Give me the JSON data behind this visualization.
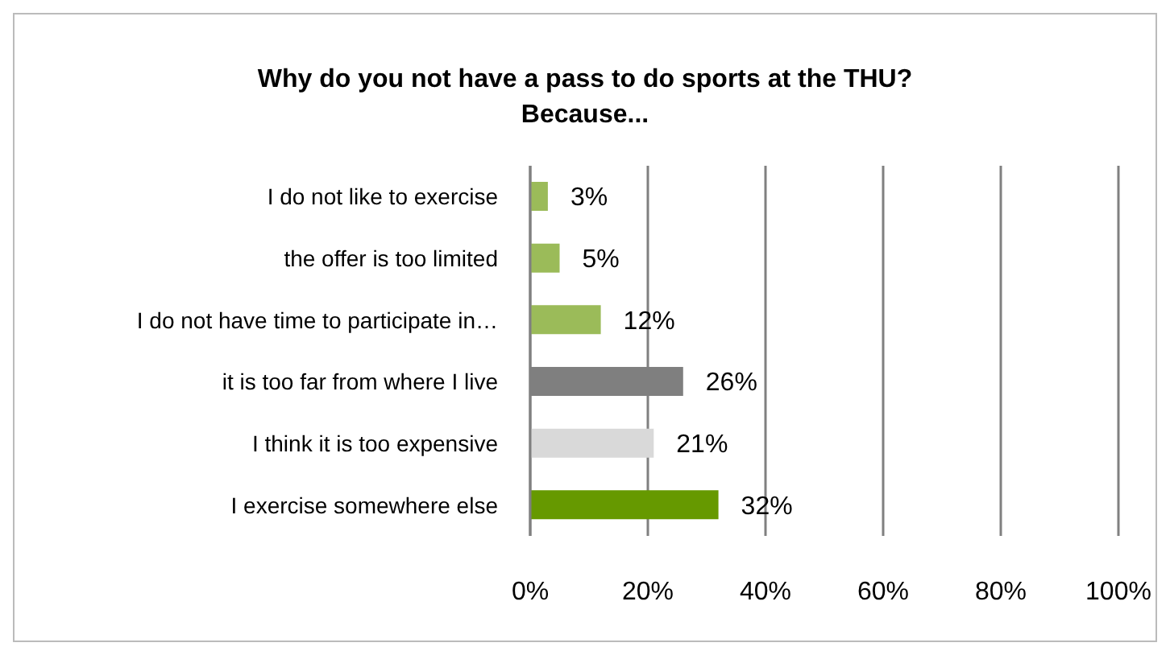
{
  "chart_data": {
    "type": "bar",
    "orientation": "horizontal",
    "title": "Why do you not have a pass to do sports at the THU?",
    "subtitle": "Because...",
    "categories": [
      "I do not like  to exercise",
      "the offer is too limited",
      "I do not have time to participate in…",
      "it is too far from where I live",
      "I think it is too expensive",
      "I exercise somewhere else"
    ],
    "values": [
      3,
      5,
      12,
      26,
      21,
      32
    ],
    "colors": [
      "#9bbb59",
      "#9bbb59",
      "#9bbb59",
      "#7f7f7f",
      "#d9d9d9",
      "#669900"
    ],
    "value_labels": [
      "3%",
      "5%",
      "12%",
      "26%",
      "21%",
      "32%"
    ],
    "xlim": [
      0,
      100
    ],
    "xticks": [
      {
        "value": 0,
        "label": "0%"
      },
      {
        "value": 20,
        "label": "20%"
      },
      {
        "value": 40,
        "label": "40%"
      },
      {
        "value": 60,
        "label": "60%"
      },
      {
        "value": 80,
        "label": "80%"
      },
      {
        "value": 100,
        "label": "100%"
      }
    ],
    "grid": "x",
    "legend": false
  }
}
